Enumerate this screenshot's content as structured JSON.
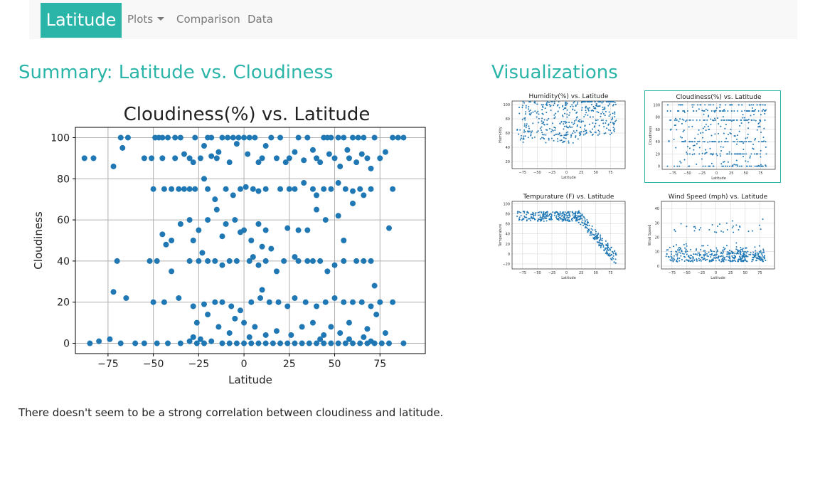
{
  "nav": {
    "brand": "Latitude",
    "items": [
      {
        "label": "Plots",
        "has_dropdown": true
      },
      {
        "label": "Comparison"
      },
      {
        "label": "Data"
      }
    ]
  },
  "summary": {
    "heading": "Summary: Latitude vs. Cloudiness",
    "description": "There doesn't seem to be a strong correlation between cloudiness and latitude."
  },
  "visualizations": {
    "heading": "Visualizations",
    "thumbnails": [
      {
        "title": "Humidity(%) vs. Latitude",
        "xlabel": "Latitude",
        "ylabel": "Humidity",
        "ylim": [
          10,
          105
        ],
        "yticks": [
          20,
          40,
          60,
          80,
          100
        ],
        "active": false
      },
      {
        "title": "Cloudiness(%) vs. Latitude",
        "xlabel": "Latitude",
        "ylabel": "Cloudiness",
        "ylim": [
          -5,
          105
        ],
        "yticks": [
          0,
          20,
          40,
          60,
          80,
          100
        ],
        "active": true
      },
      {
        "title": "Tempurature (F) vs. Latitude",
        "xlabel": "Latitude",
        "ylabel": "Temperature",
        "ylim": [
          -30,
          105
        ],
        "yticks": [
          -20,
          0,
          20,
          40,
          60,
          80,
          100
        ],
        "active": false
      },
      {
        "title": "Wind Speed (mph) vs. Latitude",
        "xlabel": "Latitude",
        "ylabel": "Wind Speed",
        "ylim": [
          -2,
          45
        ],
        "yticks": [
          0,
          10,
          20,
          30,
          40
        ],
        "active": false
      }
    ]
  },
  "colors": {
    "accent": "#2bb5a8",
    "point": "#1f77b4",
    "grid": "#b0b0b0"
  },
  "chart_data": {
    "type": "scatter",
    "title": "Cloudiness(%) vs. Latitude",
    "xlabel": "Latitude",
    "ylabel": "Cloudiness",
    "xlim": [
      -93,
      100
    ],
    "ylim": [
      -5,
      105
    ],
    "xticks": [
      -75,
      -50,
      -25,
      0,
      25,
      50,
      75
    ],
    "yticks": [
      0,
      20,
      40,
      60,
      80,
      100
    ],
    "grid": true,
    "points": [
      [
        -88,
        90
      ],
      [
        -83,
        90
      ],
      [
        -72,
        86
      ],
      [
        -67,
        95
      ],
      [
        -68,
        100
      ],
      [
        -64,
        100
      ],
      [
        -55,
        90
      ],
      [
        -51,
        90
      ],
      [
        -49,
        100
      ],
      [
        -47,
        100
      ],
      [
        -45,
        100
      ],
      [
        -42,
        100
      ],
      [
        -38,
        100
      ],
      [
        -35,
        100
      ],
      [
        -30,
        90
      ],
      [
        -27,
        100
      ],
      [
        -24,
        90
      ],
      [
        -20,
        100
      ],
      [
        -18,
        100
      ],
      [
        -15,
        90
      ],
      [
        -12,
        100
      ],
      [
        -9,
        100
      ],
      [
        -6,
        100
      ],
      [
        -3,
        100
      ],
      [
        0,
        100
      ],
      [
        3,
        100
      ],
      [
        6,
        100
      ],
      [
        10,
        90
      ],
      [
        15,
        100
      ],
      [
        20,
        100
      ],
      [
        25,
        90
      ],
      [
        30,
        100
      ],
      [
        35,
        100
      ],
      [
        40,
        90
      ],
      [
        44,
        100
      ],
      [
        46,
        100
      ],
      [
        48,
        100
      ],
      [
        50,
        90
      ],
      [
        52,
        100
      ],
      [
        55,
        100
      ],
      [
        58,
        90
      ],
      [
        60,
        100
      ],
      [
        63,
        100
      ],
      [
        66,
        100
      ],
      [
        68,
        90
      ],
      [
        72,
        100
      ],
      [
        75,
        90
      ],
      [
        78,
        93
      ],
      [
        82,
        100
      ],
      [
        85,
        100
      ],
      [
        88,
        100
      ],
      [
        -45,
        90
      ],
      [
        -38,
        90
      ],
      [
        -33,
        92
      ],
      [
        -28,
        88
      ],
      [
        -22,
        96
      ],
      [
        -18,
        91
      ],
      [
        -14,
        93
      ],
      [
        -8,
        88
      ],
      [
        -4,
        97
      ],
      [
        2,
        92
      ],
      [
        8,
        88
      ],
      [
        12,
        96
      ],
      [
        18,
        90
      ],
      [
        23,
        88
      ],
      [
        28,
        93
      ],
      [
        33,
        89
      ],
      [
        38,
        94
      ],
      [
        42,
        88
      ],
      [
        47,
        92
      ],
      [
        53,
        86
      ],
      [
        57,
        94
      ],
      [
        62,
        88
      ],
      [
        65,
        92
      ],
      [
        70,
        85
      ],
      [
        -50,
        75
      ],
      [
        -44,
        75
      ],
      [
        -40,
        75
      ],
      [
        -36,
        75
      ],
      [
        -33,
        75
      ],
      [
        -30,
        75
      ],
      [
        -27,
        75
      ],
      [
        -22,
        80
      ],
      [
        -20,
        75
      ],
      [
        -16,
        70
      ],
      [
        -10,
        75
      ],
      [
        -6,
        72
      ],
      [
        -2,
        75
      ],
      [
        1,
        76
      ],
      [
        5,
        75
      ],
      [
        8,
        74
      ],
      [
        12,
        75
      ],
      [
        20,
        75
      ],
      [
        25,
        75
      ],
      [
        28,
        75
      ],
      [
        33,
        78
      ],
      [
        38,
        75
      ],
      [
        40,
        72
      ],
      [
        44,
        75
      ],
      [
        48,
        75
      ],
      [
        52,
        78
      ],
      [
        56,
        75
      ],
      [
        60,
        74
      ],
      [
        64,
        75
      ],
      [
        66,
        72
      ],
      [
        70,
        75
      ],
      [
        82,
        75
      ],
      [
        -20,
        60
      ],
      [
        -15,
        65
      ],
      [
        -10,
        58
      ],
      [
        -5,
        60
      ],
      [
        0,
        55
      ],
      [
        8,
        58
      ],
      [
        12,
        55
      ],
      [
        -35,
        58
      ],
      [
        -40,
        50
      ],
      [
        -45,
        53
      ],
      [
        -12,
        52
      ],
      [
        -2,
        54
      ],
      [
        4,
        50
      ],
      [
        10,
        47
      ],
      [
        15,
        46
      ],
      [
        -25,
        55
      ],
      [
        -28,
        50
      ],
      [
        -30,
        60
      ],
      [
        35,
        55
      ],
      [
        40,
        65
      ],
      [
        45,
        60
      ],
      [
        52,
        62
      ],
      [
        55,
        50
      ],
      [
        60,
        68
      ],
      [
        80,
        56
      ],
      [
        24,
        56
      ],
      [
        30,
        55
      ],
      [
        -70,
        40
      ],
      [
        -52,
        40
      ],
      [
        -48,
        40
      ],
      [
        -40,
        35
      ],
      [
        -30,
        40
      ],
      [
        -25,
        40
      ],
      [
        -20,
        40
      ],
      [
        -16,
        40
      ],
      [
        -12,
        38
      ],
      [
        -8,
        40
      ],
      [
        -4,
        40
      ],
      [
        3,
        40
      ],
      [
        8,
        38
      ],
      [
        12,
        40
      ],
      [
        18,
        35
      ],
      [
        22,
        40
      ],
      [
        30,
        40
      ],
      [
        35,
        40
      ],
      [
        38,
        40
      ],
      [
        42,
        40
      ],
      [
        46,
        35
      ],
      [
        50,
        38
      ],
      [
        55,
        40
      ],
      [
        62,
        40
      ],
      [
        66,
        40
      ],
      [
        70,
        40
      ],
      [
        -23,
        44
      ],
      [
        5,
        42
      ],
      [
        -43,
        48
      ],
      [
        28,
        42
      ],
      [
        -72,
        25
      ],
      [
        -65,
        22
      ],
      [
        -50,
        20
      ],
      [
        -44,
        20
      ],
      [
        -36,
        22
      ],
      [
        -28,
        18
      ],
      [
        -22,
        19
      ],
      [
        -16,
        20
      ],
      [
        -12,
        20
      ],
      [
        -7,
        18
      ],
      [
        -2,
        16
      ],
      [
        4,
        20
      ],
      [
        9,
        22
      ],
      [
        14,
        20
      ],
      [
        19,
        20
      ],
      [
        24,
        18
      ],
      [
        28,
        22
      ],
      [
        34,
        20
      ],
      [
        40,
        18
      ],
      [
        45,
        20
      ],
      [
        50,
        22
      ],
      [
        55,
        20
      ],
      [
        60,
        20
      ],
      [
        65,
        20
      ],
      [
        70,
        18
      ],
      [
        75,
        20
      ],
      [
        82,
        20
      ],
      [
        10,
        26
      ],
      [
        72,
        28
      ],
      [
        -5,
        12
      ],
      [
        0,
        10
      ],
      [
        6,
        8
      ],
      [
        18,
        6
      ],
      [
        26,
        4
      ],
      [
        32,
        8
      ],
      [
        38,
        10
      ],
      [
        48,
        8
      ],
      [
        53,
        5
      ],
      [
        58,
        10
      ],
      [
        68,
        7
      ],
      [
        78,
        5
      ],
      [
        -26,
        10
      ],
      [
        -20,
        14
      ],
      [
        -14,
        8
      ],
      [
        -8,
        5
      ],
      [
        3,
        3
      ],
      [
        12,
        4
      ],
      [
        44,
        4
      ],
      [
        66,
        3
      ],
      [
        73,
        14
      ],
      [
        -85,
        0
      ],
      [
        -80,
        1
      ],
      [
        -74,
        2
      ],
      [
        -60,
        0
      ],
      [
        -55,
        0
      ],
      [
        -48,
        0
      ],
      [
        -42,
        0
      ],
      [
        -35,
        0
      ],
      [
        -30,
        1
      ],
      [
        -26,
        0
      ],
      [
        -22,
        0
      ],
      [
        -18,
        1
      ],
      [
        -12,
        0
      ],
      [
        -8,
        0
      ],
      [
        -4,
        0
      ],
      [
        0,
        0
      ],
      [
        4,
        0
      ],
      [
        8,
        0
      ],
      [
        12,
        0
      ],
      [
        16,
        0
      ],
      [
        20,
        0
      ],
      [
        24,
        0
      ],
      [
        28,
        0
      ],
      [
        32,
        0
      ],
      [
        36,
        0
      ],
      [
        40,
        0
      ],
      [
        44,
        0
      ],
      [
        48,
        0
      ],
      [
        52,
        0
      ],
      [
        56,
        0
      ],
      [
        60,
        0
      ],
      [
        64,
        0
      ],
      [
        68,
        0
      ],
      [
        72,
        0
      ],
      [
        76,
        0
      ],
      [
        80,
        0
      ],
      [
        88,
        0
      ],
      [
        -68,
        0
      ],
      [
        -28,
        3
      ],
      [
        -24,
        2
      ],
      [
        42,
        2
      ],
      [
        58,
        2
      ],
      [
        70,
        1
      ]
    ]
  }
}
